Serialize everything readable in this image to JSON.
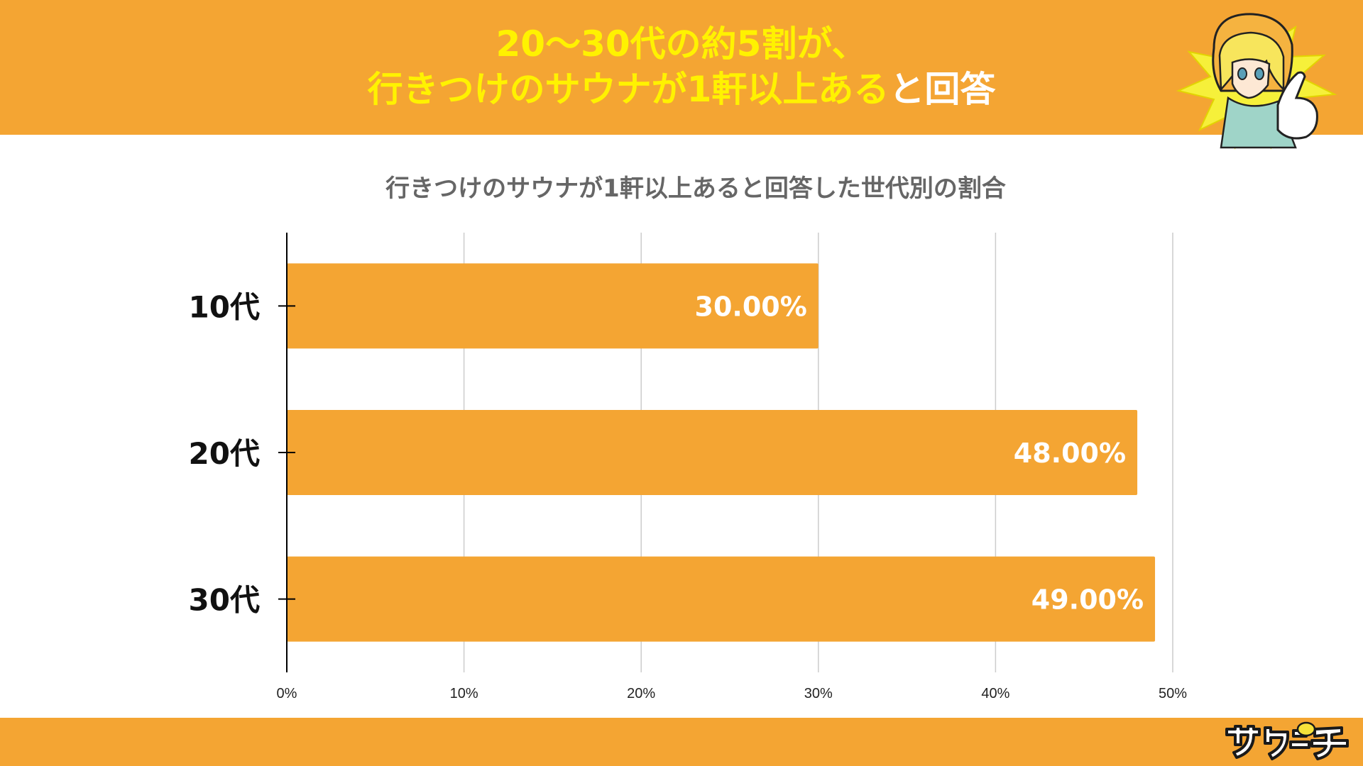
{
  "header": {
    "headline_line1": "20〜30代の約5割が、",
    "headline_line2_yellow": "行きつけのサウナが1軒以上ある",
    "headline_line2_white": "と回答"
  },
  "colors": {
    "accent": "#f4a533",
    "headline_yellow": "#fff200",
    "bar": "#f4a533",
    "bar_label": "#ffffff",
    "grid": "#cccccc",
    "axis": "#000000"
  },
  "chart_data": {
    "type": "bar",
    "orientation": "horizontal",
    "title": "行きつけのサウナが1軒以上あると回答した世代別の割合",
    "categories": [
      "10代",
      "20代",
      "30代"
    ],
    "values": [
      30.0,
      48.0,
      49.0
    ],
    "data_labels": [
      "30.00%",
      "48.00%",
      "49.00%"
    ],
    "xlim": [
      0,
      50
    ],
    "x_ticks": [
      0,
      10,
      20,
      30,
      40,
      50
    ],
    "x_tick_labels": [
      "0%",
      "10%",
      "20%",
      "30%",
      "40%",
      "50%"
    ],
    "grid": true
  },
  "icons": {
    "mascot": "pointing-girl-mascot-icon",
    "logo": "sauna-logo-icon"
  }
}
